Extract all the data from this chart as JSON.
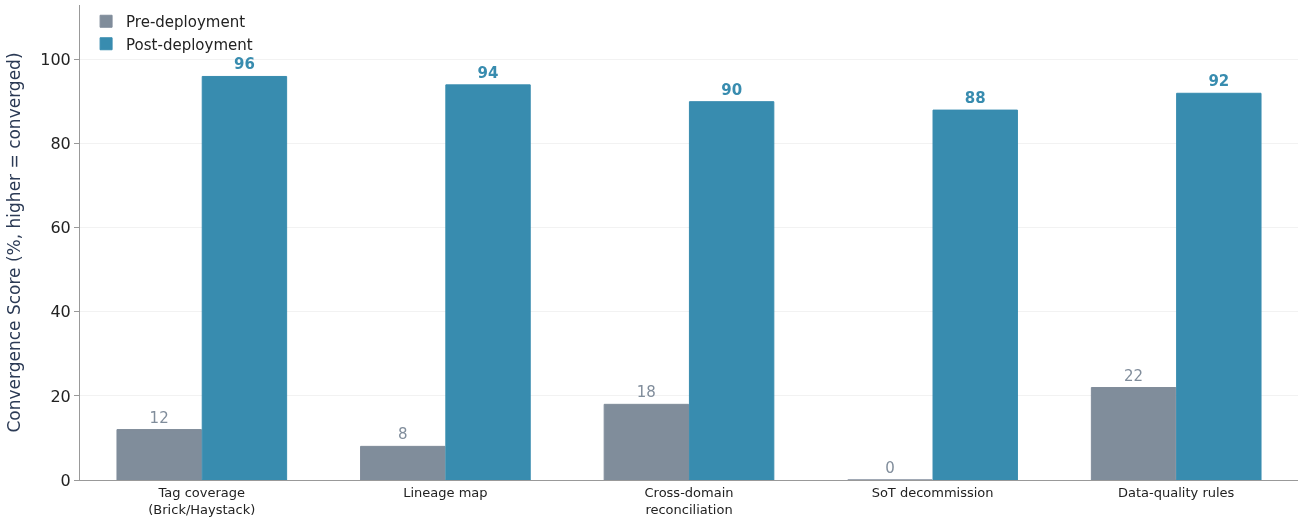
{
  "chart_data": {
    "type": "bar",
    "ylabel": "Convergence Score (%, higher = converged)",
    "categories": [
      "Tag coverage\n(Brick/Haystack)",
      "Lineage map",
      "Cross-domain\nreconciliation",
      "SoT decommission",
      "Data-quality rules"
    ],
    "series": [
      {
        "name": "Pre-deployment",
        "color": "#7a8796",
        "values": [
          12,
          8,
          18,
          0,
          22
        ]
      },
      {
        "name": "Post-deployment",
        "color": "#2e86ab",
        "values": [
          96,
          94,
          90,
          88,
          92
        ]
      }
    ],
    "ylim": [
      0,
      113
    ],
    "yticks": [
      0,
      20,
      40,
      60,
      80,
      100
    ],
    "grid": "y",
    "legend": "top left",
    "data_labels": true
  }
}
